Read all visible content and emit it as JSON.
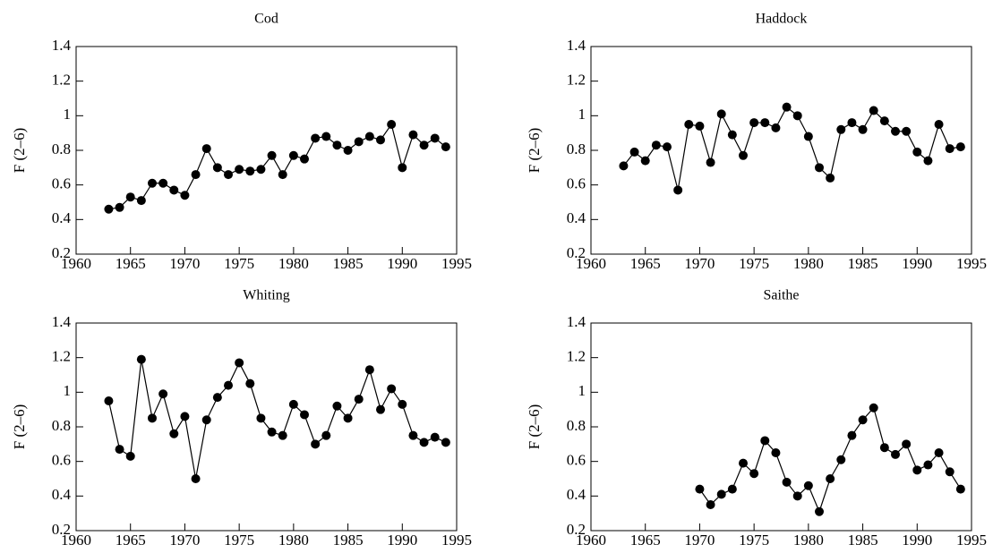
{
  "chart_data": [
    {
      "type": "line",
      "title": "Cod",
      "ylabel": "F (2–6)",
      "x": [
        1963,
        1964,
        1965,
        1966,
        1967,
        1968,
        1969,
        1970,
        1971,
        1972,
        1973,
        1974,
        1975,
        1976,
        1977,
        1978,
        1979,
        1980,
        1981,
        1982,
        1983,
        1984,
        1985,
        1986,
        1987,
        1988,
        1989,
        1990,
        1991,
        1992,
        1993,
        1994
      ],
      "values": [
        0.46,
        0.47,
        0.53,
        0.51,
        0.61,
        0.61,
        0.57,
        0.54,
        0.66,
        0.81,
        0.7,
        0.66,
        0.69,
        0.68,
        0.69,
        0.77,
        0.66,
        0.77,
        0.75,
        0.87,
        0.88,
        0.83,
        0.8,
        0.85,
        0.88,
        0.86,
        0.95,
        0.7,
        0.89,
        0.83,
        0.87,
        0.82
      ],
      "color": "#000000",
      "xlim": [
        1960,
        1995
      ],
      "ylim": [
        0.2,
        1.4
      ],
      "xticks": [
        1960,
        1965,
        1970,
        1975,
        1980,
        1985,
        1990,
        1995
      ],
      "yticks": [
        0.2,
        0.4,
        0.6,
        0.8,
        1,
        1.2,
        1.4
      ]
    },
    {
      "type": "line",
      "title": "Haddock",
      "ylabel": "F (2–6)",
      "x": [
        1963,
        1964,
        1965,
        1966,
        1967,
        1968,
        1969,
        1970,
        1971,
        1972,
        1973,
        1974,
        1975,
        1976,
        1977,
        1978,
        1979,
        1980,
        1981,
        1982,
        1983,
        1984,
        1985,
        1986,
        1987,
        1988,
        1989,
        1990,
        1991,
        1992,
        1993,
        1994
      ],
      "values": [
        0.71,
        0.79,
        0.74,
        0.83,
        0.82,
        0.57,
        0.95,
        0.94,
        0.73,
        1.01,
        0.89,
        0.77,
        0.96,
        0.96,
        0.93,
        1.05,
        1.0,
        0.88,
        0.7,
        0.64,
        0.92,
        0.96,
        0.92,
        1.03,
        0.97,
        0.91,
        0.91,
        0.79,
        0.74,
        0.95,
        0.81,
        0.82
      ],
      "color": "#000000",
      "xlim": [
        1960,
        1995
      ],
      "ylim": [
        0.2,
        1.4
      ],
      "xticks": [
        1960,
        1965,
        1970,
        1975,
        1980,
        1985,
        1990,
        1995
      ],
      "yticks": [
        0.2,
        0.4,
        0.6,
        0.8,
        1,
        1.2,
        1.4
      ]
    },
    {
      "type": "line",
      "title": "Whiting",
      "ylabel": "F (2–6)",
      "x": [
        1963,
        1964,
        1965,
        1966,
        1967,
        1968,
        1969,
        1970,
        1971,
        1972,
        1973,
        1974,
        1975,
        1976,
        1977,
        1978,
        1979,
        1980,
        1981,
        1982,
        1983,
        1984,
        1985,
        1986,
        1987,
        1988,
        1989,
        1990,
        1991,
        1992,
        1993,
        1994
      ],
      "values": [
        0.95,
        0.67,
        0.63,
        1.19,
        0.85,
        0.99,
        0.76,
        0.86,
        0.5,
        0.84,
        0.97,
        1.04,
        1.17,
        1.05,
        0.85,
        0.77,
        0.75,
        0.93,
        0.87,
        0.7,
        0.75,
        0.92,
        0.85,
        0.96,
        1.13,
        0.9,
        1.02,
        0.93,
        0.75,
        0.71,
        0.74,
        0.71
      ],
      "color": "#000000",
      "xlim": [
        1960,
        1995
      ],
      "ylim": [
        0.2,
        1.4
      ],
      "xticks": [
        1960,
        1965,
        1970,
        1975,
        1980,
        1985,
        1990,
        1995
      ],
      "yticks": [
        0.2,
        0.4,
        0.6,
        0.8,
        1,
        1.2,
        1.4
      ]
    },
    {
      "type": "line",
      "title": "Saithe",
      "ylabel": "F (2–6)",
      "x": [
        1970,
        1971,
        1972,
        1973,
        1974,
        1975,
        1976,
        1977,
        1978,
        1979,
        1980,
        1981,
        1982,
        1983,
        1984,
        1985,
        1986,
        1987,
        1988,
        1989,
        1990,
        1991,
        1992,
        1993,
        1994
      ],
      "values": [
        0.44,
        0.35,
        0.41,
        0.44,
        0.59,
        0.53,
        0.72,
        0.65,
        0.48,
        0.4,
        0.46,
        0.31,
        0.5,
        0.61,
        0.75,
        0.84,
        0.91,
        0.68,
        0.64,
        0.7,
        0.55,
        0.58,
        0.65,
        0.54,
        0.44
      ],
      "color": "#000000",
      "xlim": [
        1960,
        1995
      ],
      "ylim": [
        0.2,
        1.4
      ],
      "xticks": [
        1960,
        1965,
        1970,
        1975,
        1980,
        1985,
        1990,
        1995
      ],
      "yticks": [
        0.2,
        0.4,
        0.6,
        0.8,
        1,
        1.2,
        1.4
      ]
    }
  ]
}
